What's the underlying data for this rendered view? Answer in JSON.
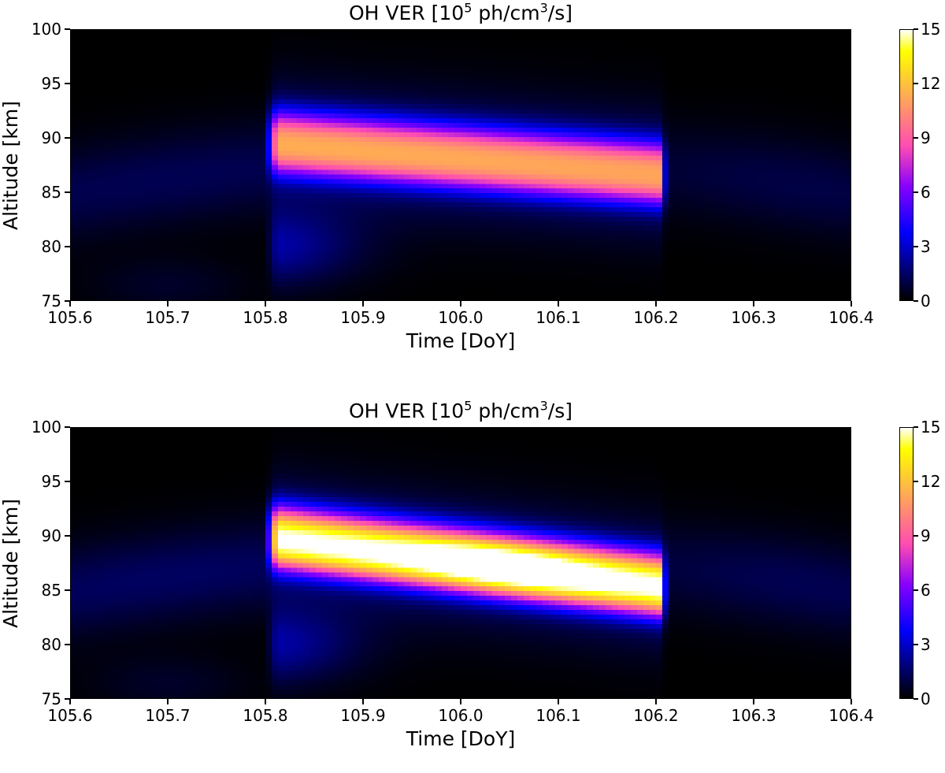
{
  "chart_data": [
    {
      "type": "heatmap",
      "title": "OH VER [10^5 ph/cm^3/s]",
      "title_parts": {
        "main": "OH VER [10",
        "exp": "5",
        "mid": " ph/cm",
        "exp2": "3",
        "end": "/s]"
      },
      "xlabel": "Time [DoY]",
      "ylabel": "Altitude [km]",
      "xlim": [
        105.6,
        106.4
      ],
      "ylim": [
        75,
        100
      ],
      "xticks": [
        "105.6",
        "105.7",
        "105.8",
        "105.9",
        "106.0",
        "106.1",
        "106.2",
        "106.3",
        "106.4"
      ],
      "yticks": [
        "75",
        "80",
        "85",
        "90",
        "95",
        "100"
      ],
      "colormap": "gnuplot2",
      "colorbar": {
        "range": [
          0,
          15
        ],
        "ticks": [
          "0",
          "3",
          "6",
          "9",
          "12",
          "15"
        ]
      },
      "field": {
        "night_start": 105.8,
        "night_end": 106.21,
        "layer_peak_altitude_start": 89.5,
        "layer_peak_altitude_end": 86.5,
        "layer_peak_value_start": 9.2,
        "layer_peak_value_end": 9.0,
        "background_peak_value": 1.2
      },
      "grid": false
    },
    {
      "type": "heatmap",
      "title": "OH VER [10^5 ph/cm^3/s]",
      "title_parts": {
        "main": "OH VER [10",
        "exp": "5",
        "mid": " ph/cm",
        "exp2": "3",
        "end": "/s]"
      },
      "xlabel": "Time [DoY]",
      "ylabel": "Altitude [km]",
      "xlim": [
        105.6,
        106.4
      ],
      "ylim": [
        75,
        100
      ],
      "xticks": [
        "105.6",
        "105.7",
        "105.8",
        "105.9",
        "106.0",
        "106.1",
        "106.2",
        "106.3",
        "106.4"
      ],
      "yticks": [
        "75",
        "80",
        "85",
        "90",
        "95",
        "100"
      ],
      "colormap": "gnuplot2",
      "colorbar": {
        "range": [
          0,
          15
        ],
        "ticks": [
          "0",
          "3",
          "6",
          "9",
          "12",
          "15"
        ]
      },
      "field": {
        "night_start": 105.8,
        "night_end": 106.21,
        "layer_peak_altitude_start": 89.8,
        "layer_peak_altitude_end": 85.2,
        "layer_peak_value_start": 13.0,
        "layer_peak_value_end": 13.0,
        "layer_peak_value_mid": 15.0,
        "background_peak_value": 1.4
      },
      "grid": false
    }
  ]
}
